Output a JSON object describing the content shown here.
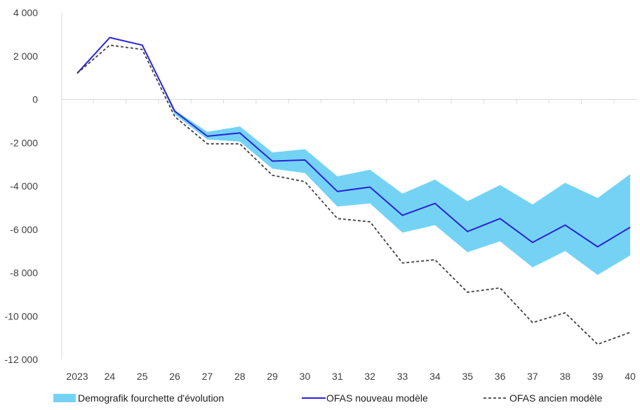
{
  "chart_data": {
    "type": "line",
    "title": "",
    "xlabel": "",
    "ylabel": "",
    "categories": [
      "2023",
      "24",
      "25",
      "26",
      "27",
      "28",
      "29",
      "30",
      "31",
      "32",
      "33",
      "34",
      "35",
      "36",
      "37",
      "38",
      "39",
      "40"
    ],
    "ylim": [
      -12000,
      4000
    ],
    "yticks": [
      4000,
      2000,
      0,
      -2000,
      -4000,
      -6000,
      -8000,
      -10000,
      -12000
    ],
    "ytick_labels": [
      "4 000",
      "2 000",
      "0",
      "-2 000",
      "-4 000",
      "-6 000",
      "-8 000",
      "-10 000",
      "-12 000"
    ],
    "grid": false,
    "legend_position": "bottom",
    "band": {
      "name": "Demografik fourchette d'évolution",
      "color": "#74D3F5",
      "upper": [
        1200,
        2850,
        2550,
        -500,
        -1500,
        -1250,
        -2450,
        -2300,
        -3550,
        -3250,
        -4350,
        -3700,
        -4700,
        -3950,
        -4850,
        -3850,
        -4550,
        -3450
      ],
      "lower": [
        1200,
        2850,
        2550,
        -700,
        -1850,
        -1950,
        -3200,
        -3400,
        -4950,
        -4800,
        -6150,
        -5800,
        -7050,
        -6550,
        -7750,
        -7000,
        -8100,
        -7200
      ]
    },
    "series": [
      {
        "name": "OFAS nouveau modèle",
        "color": "#2B22D9",
        "style": "solid",
        "values": [
          1200,
          2850,
          2500,
          -550,
          -1700,
          -1550,
          -2850,
          -2800,
          -4250,
          -4050,
          -5350,
          -4800,
          -6100,
          -5500,
          -6600,
          -5800,
          -6800,
          -5900
        ]
      },
      {
        "name": "OFAS ancien modèle",
        "color": "#404040",
        "style": "dashed",
        "values": [
          1200,
          2500,
          2300,
          -800,
          -2050,
          -2050,
          -3500,
          -3800,
          -5500,
          -5650,
          -7550,
          -7400,
          -8900,
          -8700,
          -10300,
          -9850,
          -11300,
          -10750
        ]
      }
    ]
  }
}
